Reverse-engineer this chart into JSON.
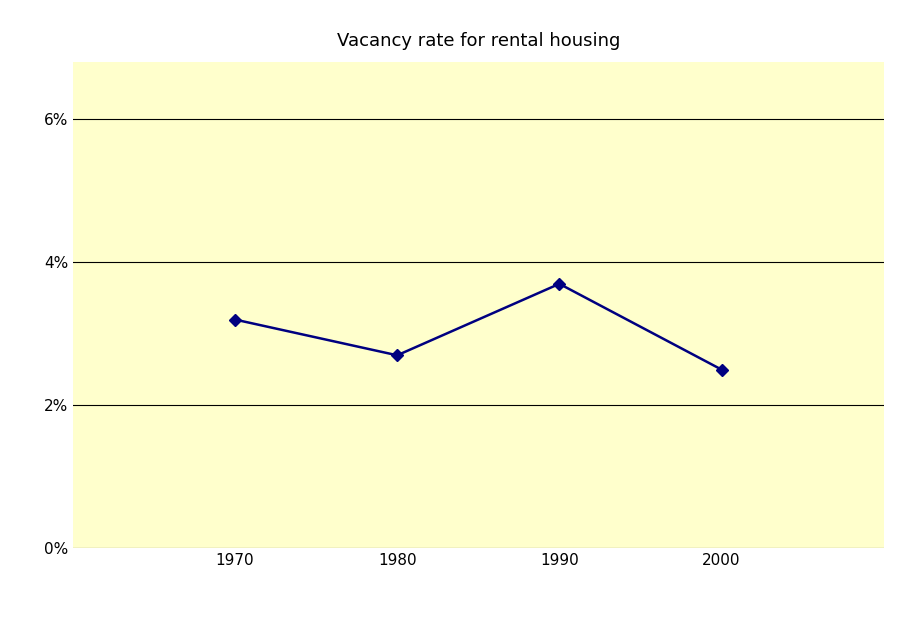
{
  "title": "Vacancy rate for rental housing",
  "x_values": [
    1970,
    1980,
    1990,
    2000
  ],
  "y_values": [
    0.032,
    0.027,
    0.037,
    0.025
  ],
  "x_ticks": [
    1970,
    1980,
    1990,
    2000
  ],
  "y_ticks": [
    0.0,
    0.02,
    0.04,
    0.06
  ],
  "y_tick_labels": [
    "0%",
    "2%",
    "4%",
    "6%"
  ],
  "ylim": [
    0.0,
    0.068
  ],
  "xlim": [
    1960,
    2010
  ],
  "line_color": "#000080",
  "marker": "D",
  "marker_size": 6,
  "line_width": 1.8,
  "plot_bg_color": "#FFFFCC",
  "fig_bg_color": "#FFFFFF",
  "title_fontsize": 13,
  "tick_fontsize": 11,
  "grid_color": "#000000",
  "grid_linewidth": 0.8
}
